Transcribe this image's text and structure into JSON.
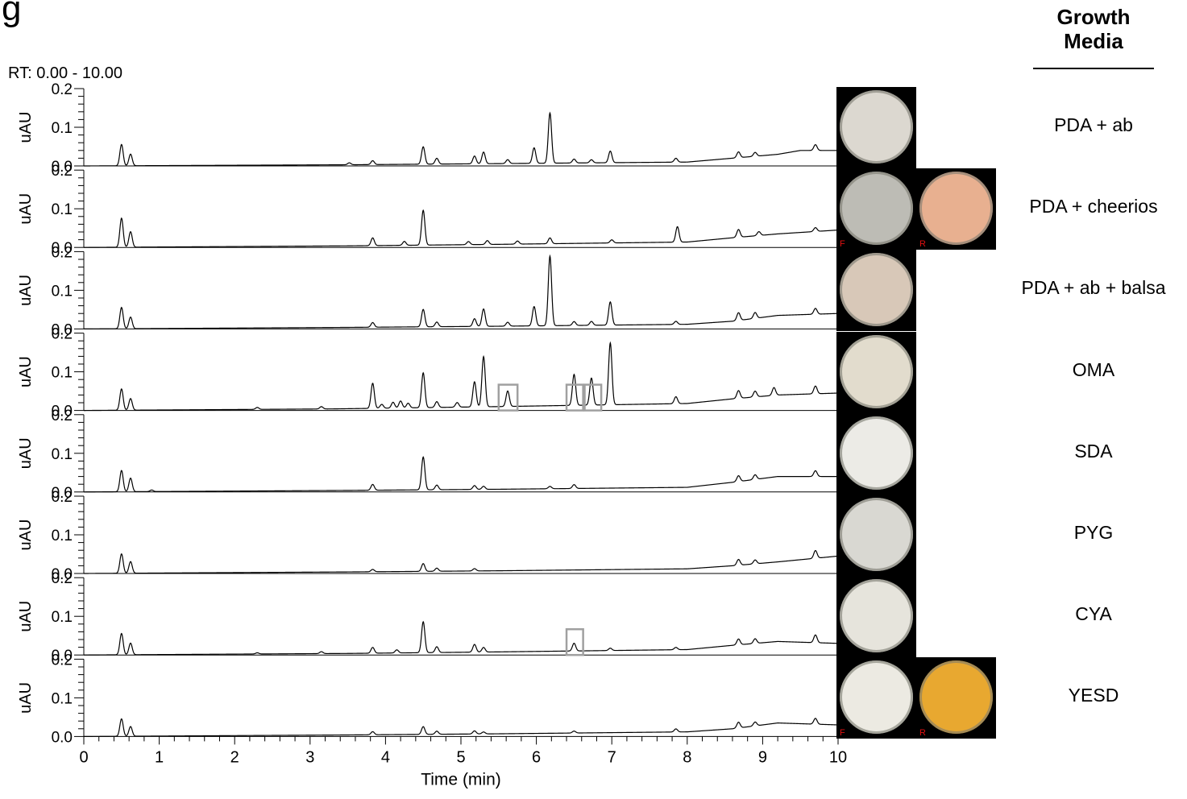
{
  "panel_letter": "g",
  "rt_range": "RT: 0.00 - 10.00",
  "media_header": {
    "line1": "Growth",
    "line2": "Media"
  },
  "plate_side_labels": {
    "front": "F",
    "reverse": "R"
  },
  "colors": {
    "trace": "#000000",
    "highlight_box": "#a0a0a0",
    "plate_bg": "#000000",
    "plate_mark": "#e01010"
  },
  "chart_data": {
    "type": "line",
    "title": "",
    "xlabel": "Time (min)",
    "ylabel": "uAU",
    "xlim": [
      0,
      10
    ],
    "ylim": [
      0,
      0.2
    ],
    "x_ticks": [
      "0",
      "1",
      "2",
      "3",
      "4",
      "5",
      "6",
      "7",
      "8",
      "9",
      "10"
    ],
    "y_ticks": [
      "0.0",
      "0.1",
      "0.2"
    ],
    "grid": false,
    "series": [
      {
        "name": "PDA + ab",
        "plates": [
          "front"
        ],
        "dish_colors": [
          "#dcd8d0"
        ],
        "baseline": [
          [
            0,
            0
          ],
          [
            3.5,
            0.003
          ],
          [
            5.5,
            0.006
          ],
          [
            8,
            0.01
          ],
          [
            8.6,
            0.02
          ],
          [
            9.2,
            0.03
          ],
          [
            9.5,
            0.04
          ],
          [
            10,
            0.04
          ]
        ],
        "peaks": [
          [
            0.5,
            0.055
          ],
          [
            0.62,
            0.03
          ],
          [
            3.52,
            0.005
          ],
          [
            3.83,
            0.01
          ],
          [
            4.5,
            0.045
          ],
          [
            4.68,
            0.015
          ],
          [
            5.18,
            0.02
          ],
          [
            5.3,
            0.03
          ],
          [
            5.62,
            0.01
          ],
          [
            5.97,
            0.04
          ],
          [
            6.18,
            0.13
          ],
          [
            6.5,
            0.01
          ],
          [
            6.73,
            0.008
          ],
          [
            6.98,
            0.03
          ],
          [
            7.85,
            0.01
          ],
          [
            8.68,
            0.015
          ],
          [
            8.9,
            0.01
          ],
          [
            9.7,
            0.015
          ]
        ],
        "highlights": []
      },
      {
        "name": "PDA + cheerios",
        "plates": [
          "front",
          "reverse"
        ],
        "dish_colors": [
          "#bdbcb5",
          "#e8b090"
        ],
        "baseline": [
          [
            0,
            0
          ],
          [
            3.5,
            0.004
          ],
          [
            5.5,
            0.008
          ],
          [
            8,
            0.014
          ],
          [
            8.6,
            0.025
          ],
          [
            9.2,
            0.035
          ],
          [
            10,
            0.045
          ]
        ],
        "peaks": [
          [
            0.5,
            0.075
          ],
          [
            0.62,
            0.04
          ],
          [
            3.83,
            0.02
          ],
          [
            4.25,
            0.01
          ],
          [
            4.5,
            0.09
          ],
          [
            5.1,
            0.008
          ],
          [
            5.35,
            0.01
          ],
          [
            5.75,
            0.008
          ],
          [
            6.18,
            0.015
          ],
          [
            7.0,
            0.008
          ],
          [
            7.87,
            0.04
          ],
          [
            8.68,
            0.02
          ],
          [
            8.95,
            0.01
          ],
          [
            9.7,
            0.01
          ]
        ],
        "highlights": []
      },
      {
        "name": "PDA + ab + balsa",
        "plates": [
          "front"
        ],
        "dish_colors": [
          "#d8c8b8"
        ],
        "baseline": [
          [
            0,
            0
          ],
          [
            3.5,
            0.004
          ],
          [
            5.5,
            0.007
          ],
          [
            8,
            0.012
          ],
          [
            8.6,
            0.02
          ],
          [
            9.2,
            0.035
          ],
          [
            10,
            0.04
          ]
        ],
        "peaks": [
          [
            0.5,
            0.055
          ],
          [
            0.62,
            0.03
          ],
          [
            3.83,
            0.012
          ],
          [
            4.5,
            0.045
          ],
          [
            4.68,
            0.012
          ],
          [
            5.18,
            0.02
          ],
          [
            5.3,
            0.045
          ],
          [
            5.62,
            0.01
          ],
          [
            5.97,
            0.05
          ],
          [
            6.18,
            0.18
          ],
          [
            6.5,
            0.01
          ],
          [
            6.73,
            0.01
          ],
          [
            6.98,
            0.06
          ],
          [
            7.85,
            0.008
          ],
          [
            8.68,
            0.02
          ],
          [
            8.9,
            0.015
          ],
          [
            9.7,
            0.015
          ]
        ],
        "highlights": []
      },
      {
        "name": "OMA",
        "plates": [
          "front"
        ],
        "dish_colors": [
          "#e2dccd"
        ],
        "baseline": [
          [
            0,
            0
          ],
          [
            3.3,
            0.004
          ],
          [
            5.5,
            0.01
          ],
          [
            8,
            0.018
          ],
          [
            8.6,
            0.03
          ],
          [
            9.2,
            0.04
          ],
          [
            10,
            0.045
          ]
        ],
        "peaks": [
          [
            0.5,
            0.055
          ],
          [
            0.62,
            0.03
          ],
          [
            2.3,
            0.005
          ],
          [
            3.15,
            0.006
          ],
          [
            3.83,
            0.065
          ],
          [
            3.95,
            0.01
          ],
          [
            4.1,
            0.015
          ],
          [
            4.2,
            0.018
          ],
          [
            4.3,
            0.012
          ],
          [
            4.5,
            0.09
          ],
          [
            4.68,
            0.015
          ],
          [
            4.95,
            0.012
          ],
          [
            5.18,
            0.065
          ],
          [
            5.3,
            0.13
          ],
          [
            5.62,
            0.04
          ],
          [
            6.5,
            0.08
          ],
          [
            6.73,
            0.07
          ],
          [
            6.98,
            0.16
          ],
          [
            7.85,
            0.018
          ],
          [
            8.68,
            0.02
          ],
          [
            8.9,
            0.015
          ],
          [
            9.15,
            0.02
          ],
          [
            9.7,
            0.02
          ]
        ],
        "highlights": [
          [
            5.5,
            5.75
          ],
          [
            6.4,
            6.62
          ],
          [
            6.64,
            6.86
          ]
        ]
      },
      {
        "name": "SDA",
        "plates": [
          "front"
        ],
        "dish_colors": [
          "#ecebe6"
        ],
        "baseline": [
          [
            0,
            0
          ],
          [
            3.5,
            0.004
          ],
          [
            5.5,
            0.007
          ],
          [
            8,
            0.012
          ],
          [
            8.6,
            0.025
          ],
          [
            9.2,
            0.04
          ],
          [
            10,
            0.04
          ]
        ],
        "peaks": [
          [
            0.5,
            0.055
          ],
          [
            0.62,
            0.035
          ],
          [
            0.9,
            0.004
          ],
          [
            3.83,
            0.015
          ],
          [
            4.5,
            0.085
          ],
          [
            4.68,
            0.012
          ],
          [
            5.18,
            0.01
          ],
          [
            5.3,
            0.008
          ],
          [
            6.18,
            0.006
          ],
          [
            6.5,
            0.01
          ],
          [
            8.68,
            0.015
          ],
          [
            8.9,
            0.012
          ],
          [
            9.7,
            0.015
          ]
        ],
        "highlights": []
      },
      {
        "name": "PYG",
        "plates": [
          "front"
        ],
        "dish_colors": [
          "#d9d8d2"
        ],
        "baseline": [
          [
            0,
            0
          ],
          [
            3.5,
            0.004
          ],
          [
            5.5,
            0.007
          ],
          [
            8,
            0.012
          ],
          [
            8.6,
            0.02
          ],
          [
            9.2,
            0.03
          ],
          [
            10,
            0.045
          ]
        ],
        "peaks": [
          [
            0.5,
            0.05
          ],
          [
            0.62,
            0.03
          ],
          [
            3.83,
            0.006
          ],
          [
            4.5,
            0.02
          ],
          [
            4.68,
            0.008
          ],
          [
            5.18,
            0.006
          ],
          [
            8.68,
            0.015
          ],
          [
            8.9,
            0.01
          ],
          [
            9.7,
            0.02
          ]
        ],
        "highlights": []
      },
      {
        "name": "CYA",
        "plates": [
          "front"
        ],
        "dish_colors": [
          "#e6e4dc"
        ],
        "baseline": [
          [
            0,
            0
          ],
          [
            3.5,
            0.004
          ],
          [
            5.5,
            0.008
          ],
          [
            8,
            0.014
          ],
          [
            8.6,
            0.025
          ],
          [
            9.2,
            0.035
          ],
          [
            10,
            0.03
          ]
        ],
        "peaks": [
          [
            0.5,
            0.055
          ],
          [
            0.62,
            0.03
          ],
          [
            2.3,
            0.003
          ],
          [
            3.15,
            0.005
          ],
          [
            3.83,
            0.015
          ],
          [
            4.15,
            0.008
          ],
          [
            4.5,
            0.08
          ],
          [
            4.68,
            0.015
          ],
          [
            5.18,
            0.02
          ],
          [
            5.3,
            0.012
          ],
          [
            6.5,
            0.02
          ],
          [
            6.98,
            0.006
          ],
          [
            7.85,
            0.006
          ],
          [
            8.68,
            0.015
          ],
          [
            8.9,
            0.012
          ],
          [
            9.7,
            0.02
          ]
        ],
        "highlights": [
          [
            6.4,
            6.62
          ]
        ]
      },
      {
        "name": "YESD",
        "plates": [
          "front",
          "reverse"
        ],
        "dish_colors": [
          "#eceae2",
          "#e8a830"
        ],
        "baseline": [
          [
            0,
            0
          ],
          [
            3.5,
            0.004
          ],
          [
            5.5,
            0.007
          ],
          [
            8,
            0.012
          ],
          [
            8.6,
            0.02
          ],
          [
            9.2,
            0.035
          ],
          [
            10,
            0.03
          ]
        ],
        "peaks": [
          [
            0.5,
            0.045
          ],
          [
            0.62,
            0.025
          ],
          [
            3.83,
            0.008
          ],
          [
            4.5,
            0.02
          ],
          [
            4.68,
            0.008
          ],
          [
            5.18,
            0.008
          ],
          [
            5.3,
            0.005
          ],
          [
            6.5,
            0.005
          ],
          [
            7.85,
            0.008
          ],
          [
            8.68,
            0.015
          ],
          [
            8.9,
            0.01
          ],
          [
            9.7,
            0.015
          ]
        ],
        "highlights": []
      }
    ]
  }
}
